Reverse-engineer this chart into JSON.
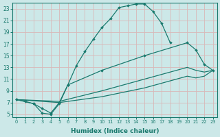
{
  "bg_color": "#cce8e8",
  "grid_color": "#b0d8d0",
  "line_color": "#1a7a6e",
  "xlabel": "Humidex (Indice chaleur)",
  "xlim": [
    -0.5,
    23.5
  ],
  "ylim": [
    4.5,
    24.0
  ],
  "xticks": [
    0,
    1,
    2,
    3,
    4,
    5,
    6,
    7,
    8,
    9,
    10,
    11,
    12,
    13,
    14,
    15,
    16,
    17,
    18,
    19,
    20,
    21,
    22,
    23
  ],
  "yticks": [
    5,
    7,
    9,
    11,
    13,
    15,
    17,
    19,
    21,
    23
  ],
  "curve1_x": [
    0,
    1,
    2,
    3,
    4,
    5,
    6,
    7,
    8,
    9,
    10,
    11,
    12,
    13,
    14,
    15,
    16,
    17,
    18
  ],
  "curve1_y": [
    7.5,
    7.2,
    6.8,
    5.2,
    5.0,
    6.8,
    10.0,
    13.3,
    15.7,
    17.8,
    19.8,
    21.3,
    23.2,
    23.5,
    23.8,
    23.8,
    22.5,
    20.5,
    17.2
  ],
  "curve2_x": [
    0,
    2,
    3,
    4,
    5,
    6,
    10,
    15,
    20,
    21,
    22,
    23
  ],
  "curve2_y": [
    7.5,
    6.8,
    6.0,
    5.2,
    7.0,
    10.0,
    12.5,
    15.0,
    17.2,
    16.0,
    13.5,
    12.5
  ],
  "curve3_x": [
    0,
    5,
    10,
    15,
    20,
    21,
    22,
    23
  ],
  "curve3_y": [
    7.5,
    7.2,
    9.0,
    11.0,
    13.0,
    12.5,
    12.2,
    12.5
  ],
  "curve4_x": [
    0,
    5,
    10,
    15,
    20,
    21,
    22,
    23
  ],
  "curve4_y": [
    7.5,
    7.0,
    8.0,
    9.5,
    11.5,
    11.2,
    11.5,
    12.5
  ]
}
